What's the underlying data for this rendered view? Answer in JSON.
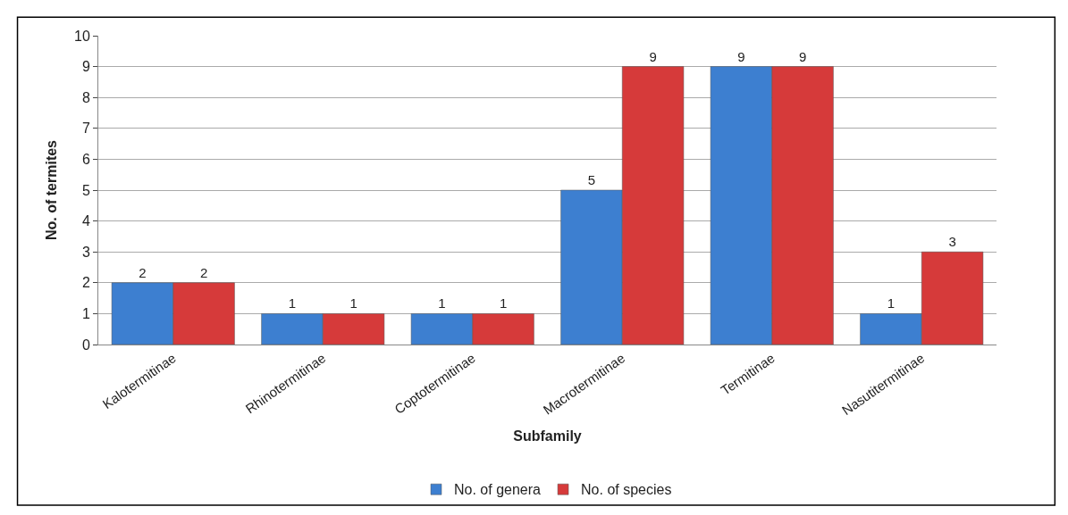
{
  "chart_data": {
    "type": "bar",
    "xlabel": "Subfamily",
    "ylabel": "No. of termites",
    "categories": [
      "Kalotermitinae",
      "Rhinotermitinae",
      "Coptotermitinae",
      "Macrotermitinae",
      "Termitinae",
      "Nasutitermitinae"
    ],
    "series": [
      {
        "name": "No. of genera",
        "color": "#3d7fd0",
        "values": [
          2,
          1,
          1,
          5,
          9,
          1
        ]
      },
      {
        "name": "No. of species",
        "color": "#d63a3a",
        "values": [
          2,
          1,
          1,
          9,
          9,
          3
        ]
      }
    ],
    "ylim": [
      0,
      10
    ],
    "yticks": [
      0,
      1,
      2,
      3,
      4,
      5,
      6,
      7,
      8,
      9,
      10
    ],
    "grid": "y",
    "legend": "bottom",
    "data_labels": true
  }
}
